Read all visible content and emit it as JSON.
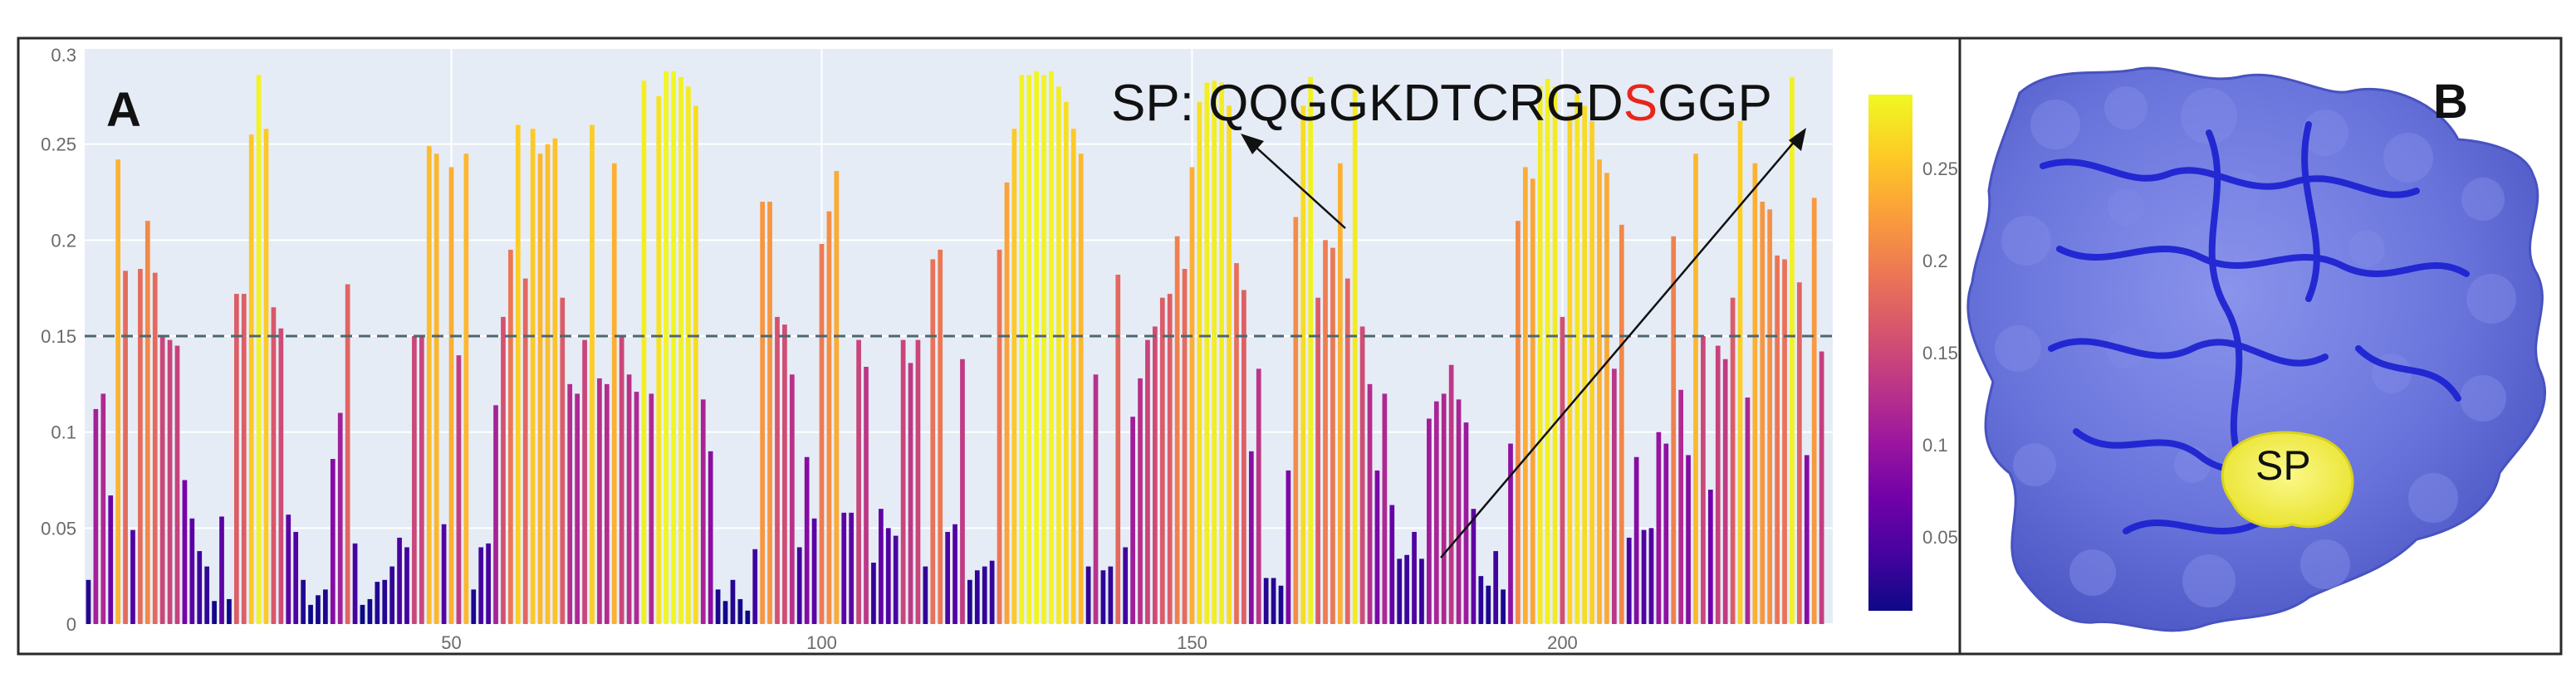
{
  "panel_a": {
    "label": "A",
    "annotation": {
      "prefix": "SP: ",
      "sequence": [
        {
          "char": "Q",
          "color": "#111111"
        },
        {
          "char": "Q",
          "color": "#111111"
        },
        {
          "char": "G",
          "color": "#111111"
        },
        {
          "char": "G",
          "color": "#111111"
        },
        {
          "char": "K",
          "color": "#111111"
        },
        {
          "char": "D",
          "color": "#111111"
        },
        {
          "char": "T",
          "color": "#111111"
        },
        {
          "char": "C",
          "color": "#111111"
        },
        {
          "char": "R",
          "color": "#111111"
        },
        {
          "char": "G",
          "color": "#111111"
        },
        {
          "char": "D",
          "color": "#111111"
        },
        {
          "char": "S",
          "color": "#e8261c"
        },
        {
          "char": "G",
          "color": "#111111"
        },
        {
          "char": "G",
          "color": "#111111"
        },
        {
          "char": "P",
          "color": "#111111"
        }
      ]
    }
  },
  "panel_b": {
    "label": "B",
    "site_label": "SP",
    "surface_color": "#6672dd",
    "ribbon_color": "#1a1fd0",
    "site_color": "#f2ee3a"
  },
  "chart_data": {
    "type": "bar",
    "title": "",
    "xlabel": "",
    "ylabel": "",
    "x_start": 1,
    "xlim": [
      0.5,
      236.5
    ],
    "ylim": [
      0,
      0.3
    ],
    "xticks": [
      50,
      100,
      150,
      200
    ],
    "yticks": [
      0,
      0.05,
      0.1,
      0.15,
      0.2,
      0.25,
      0.3
    ],
    "threshold": 0.15,
    "plot_bg": "#e5ecf6",
    "colorscale": [
      "#0d0887",
      "#46039f",
      "#7201a8",
      "#9c179e",
      "#bd3786",
      "#d8576b",
      "#ed7953",
      "#fb9f3a",
      "#fdca26",
      "#f0f921"
    ],
    "colorbar": {
      "ticks": [
        0.05,
        0.1,
        0.15,
        0.2,
        0.25
      ],
      "range": [
        0.01,
        0.29
      ]
    },
    "values": [
      0.023,
      0.112,
      0.12,
      0.067,
      0.242,
      0.184,
      0.049,
      0.185,
      0.21,
      0.183,
      0.15,
      0.148,
      0.145,
      0.075,
      0.055,
      0.038,
      0.03,
      0.012,
      0.056,
      0.013,
      0.172,
      0.172,
      0.255,
      0.286,
      0.258,
      0.165,
      0.154,
      0.057,
      0.048,
      0.023,
      0.01,
      0.015,
      0.018,
      0.086,
      0.11,
      0.177,
      0.042,
      0.01,
      0.013,
      0.022,
      0.023,
      0.03,
      0.045,
      0.04,
      0.15,
      0.15,
      0.249,
      0.245,
      0.052,
      0.238,
      0.14,
      0.245,
      0.018,
      0.04,
      0.042,
      0.114,
      0.16,
      0.195,
      0.26,
      0.18,
      0.258,
      0.245,
      0.25,
      0.253,
      0.17,
      0.125,
      0.12,
      0.148,
      0.26,
      0.128,
      0.125,
      0.24,
      0.15,
      0.13,
      0.121,
      0.283,
      0.12,
      0.275,
      0.288,
      0.288,
      0.285,
      0.28,
      0.27,
      0.117,
      0.09,
      0.018,
      0.012,
      0.023,
      0.013,
      0.007,
      0.039,
      0.22,
      0.22,
      0.16,
      0.156,
      0.13,
      0.04,
      0.087,
      0.055,
      0.198,
      0.215,
      0.236,
      0.058,
      0.058,
      0.148,
      0.134,
      0.032,
      0.06,
      0.05,
      0.046,
      0.148,
      0.136,
      0.148,
      0.03,
      0.19,
      0.195,
      0.048,
      0.052,
      0.138,
      0.023,
      0.028,
      0.03,
      0.033,
      0.195,
      0.23,
      0.258,
      0.286,
      0.286,
      0.288,
      0.286,
      0.288,
      0.28,
      0.272,
      0.258,
      0.245,
      0.03,
      0.13,
      0.028,
      0.03,
      0.182,
      0.04,
      0.108,
      0.128,
      0.148,
      0.155,
      0.17,
      0.172,
      0.202,
      0.185,
      0.238,
      0.272,
      0.282,
      0.283,
      0.282,
      0.27,
      0.188,
      0.174,
      0.09,
      0.133,
      0.024,
      0.024,
      0.02,
      0.08,
      0.212,
      0.27,
      0.285,
      0.17,
      0.2,
      0.196,
      0.24,
      0.18,
      0.28,
      0.155,
      0.125,
      0.08,
      0.12,
      0.062,
      0.034,
      0.036,
      0.048,
      0.034,
      0.107,
      0.116,
      0.12,
      0.135,
      0.117,
      0.105,
      0.06,
      0.025,
      0.02,
      0.038,
      0.018,
      0.094,
      0.21,
      0.238,
      0.232,
      0.28,
      0.284,
      0.28,
      0.16,
      0.265,
      0.276,
      0.27,
      0.262,
      0.242,
      0.235,
      0.133,
      0.208,
      0.045,
      0.087,
      0.049,
      0.05,
      0.1,
      0.094,
      0.202,
      0.122,
      0.088,
      0.245,
      0.15,
      0.07,
      0.145,
      0.138,
      0.17,
      0.262,
      0.118,
      0.24,
      0.22,
      0.216,
      0.192,
      0.19,
      0.285,
      0.178,
      0.088,
      0.222,
      0.142
    ]
  }
}
